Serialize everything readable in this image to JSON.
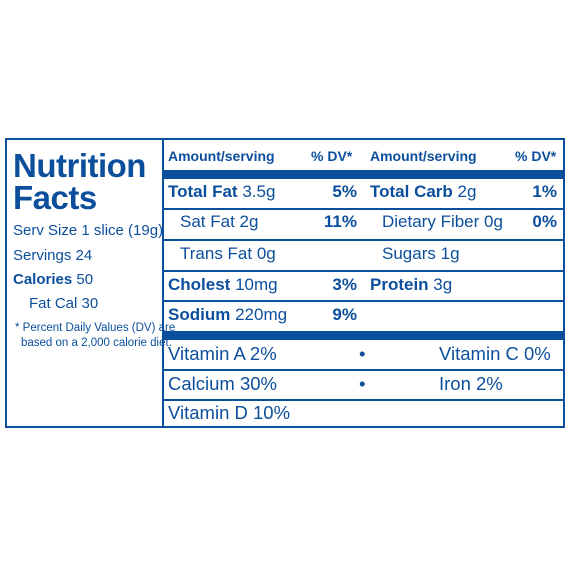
{
  "left": {
    "title_line1": "Nutrition",
    "title_line2": "Facts",
    "serv_size": "Serv Size 1 slice (19g)",
    "servings": "Servings 24",
    "calories_label": "Calories",
    "calories_value": "50",
    "fat_cal": "Fat Cal 30",
    "footnote_line1": "* Percent Daily Values (DV) are",
    "footnote_line2": "based on a 2,000 calorie diet."
  },
  "header": {
    "amount_left": "Amount/serving",
    "dv_left": "% DV*",
    "amount_right": "Amount/serving",
    "dv_right": "% DV*"
  },
  "nutrients_left": [
    {
      "name": "Total Fat",
      "amount": "3.5g",
      "dv": "5%"
    },
    {
      "name": "Sat Fat",
      "amount": "2g",
      "dv": "11%"
    },
    {
      "name": "Trans Fat",
      "amount": "0g",
      "dv": ""
    },
    {
      "name": "Cholest",
      "amount": "10mg",
      "dv": "3%"
    },
    {
      "name": "Sodium",
      "amount": "220mg",
      "dv": "9%"
    }
  ],
  "nutrients_right": [
    {
      "name": "Total Carb",
      "amount": "2g",
      "dv": "1%"
    },
    {
      "name": "Dietary Fiber",
      "amount": "0g",
      "dv": "0%"
    },
    {
      "name": "Sugars",
      "amount": "1g",
      "dv": ""
    },
    {
      "name": "Protein",
      "amount": "3g",
      "dv": ""
    }
  ],
  "vitamins": {
    "vit_a": "Vitamin A 2%",
    "bullet": "•",
    "vit_c": "Vitamin C 0%",
    "calcium": "Calcium 30%",
    "iron": "Iron 2%",
    "vit_d": "Vitamin D 10%"
  },
  "colors": {
    "label_blue": "#0b4f9c",
    "background": "#ffffff"
  }
}
